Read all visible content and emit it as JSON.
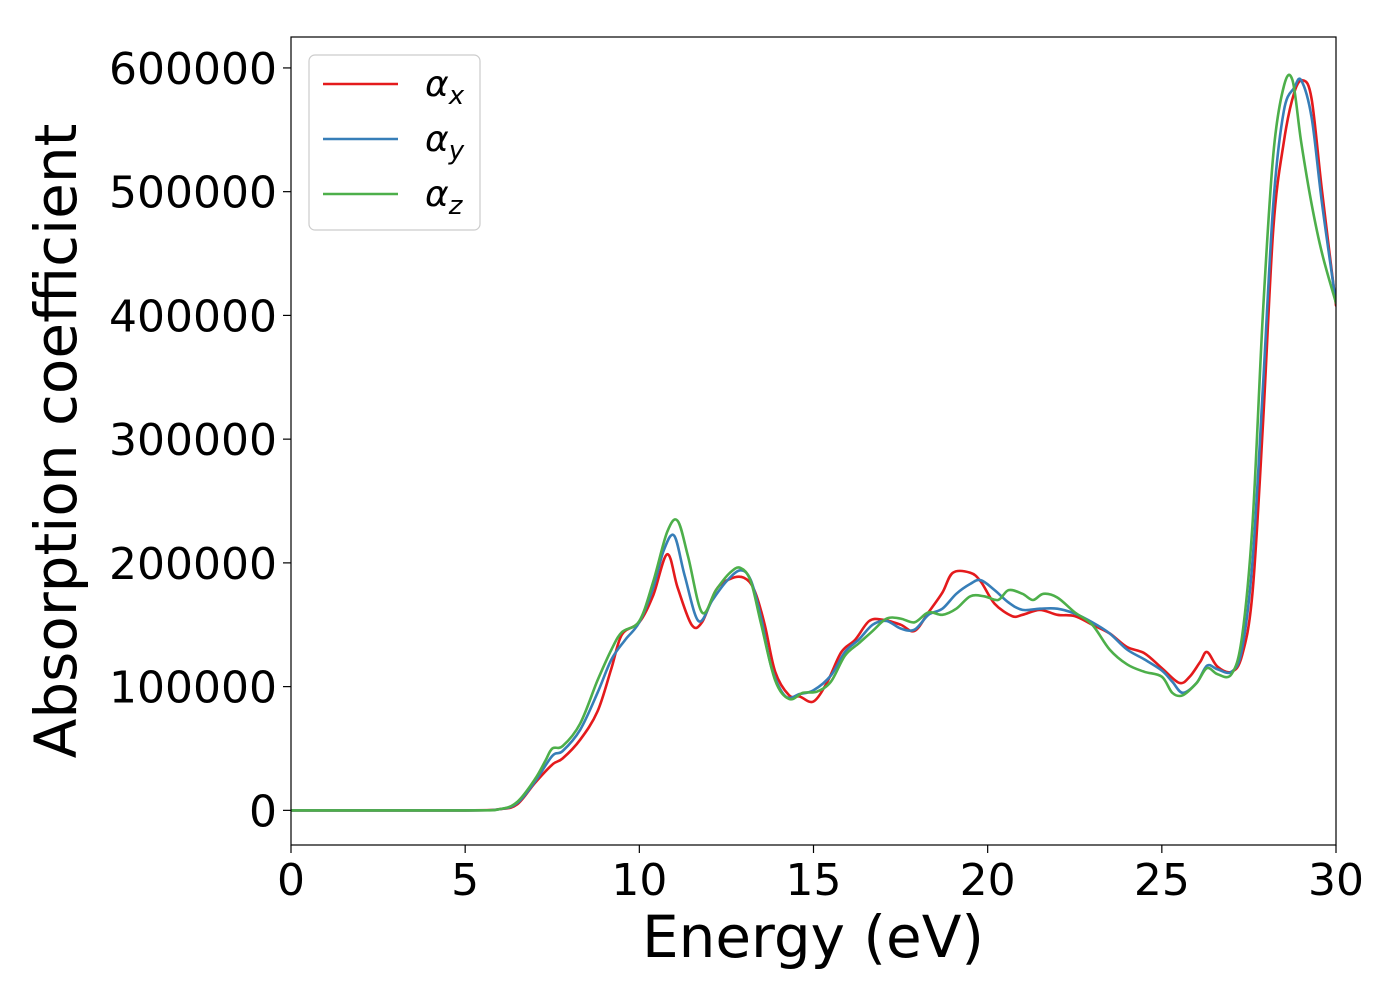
{
  "chart_data": {
    "type": "line",
    "title": "",
    "xlabel": "Energy (eV)",
    "ylabel": "Absorption coefficient",
    "xlim": [
      0,
      30
    ],
    "ylim": [
      -28000,
      625000
    ],
    "xticks": [
      0,
      5,
      10,
      15,
      20,
      25,
      30
    ],
    "yticks": [
      0,
      100000,
      200000,
      300000,
      400000,
      500000,
      600000
    ],
    "grid": false,
    "legend_position": "top-left",
    "series": [
      {
        "name": "α",
        "subscript": "x",
        "color": "#e41a1c",
        "x": [
          0,
          5,
          6,
          6.5,
          7,
          7.5,
          7.8,
          8.3,
          8.8,
          9.2,
          9.5,
          10,
          10.4,
          10.8,
          11.1,
          11.5,
          11.8,
          12.2,
          12.6,
          13,
          13.3,
          13.6,
          13.9,
          14.3,
          14.6,
          15,
          15.4,
          15.8,
          16.2,
          16.6,
          17,
          17.5,
          17.9,
          18.3,
          18.7,
          19,
          19.5,
          19.8,
          20.2,
          20.7,
          21,
          21.5,
          22,
          22.5,
          23,
          23.5,
          24,
          24.5,
          25,
          25.5,
          25.8,
          26.1,
          26.3,
          26.6,
          27,
          27.3,
          27.6,
          27.9,
          28.2,
          28.5,
          28.8,
          29.05,
          29.3,
          29.6,
          30
        ],
        "y": [
          0,
          0,
          1000,
          5000,
          22000,
          37000,
          42000,
          57000,
          80000,
          115000,
          142000,
          152000,
          174000,
          207000,
          180000,
          150000,
          152000,
          178000,
          187000,
          188000,
          178000,
          150000,
          112000,
          93000,
          92000,
          88000,
          104000,
          128000,
          138000,
          153000,
          154000,
          150000,
          145000,
          160000,
          176000,
          192000,
          192000,
          185000,
          167000,
          157000,
          158000,
          162000,
          158000,
          157000,
          150000,
          143000,
          132000,
          127000,
          115000,
          103000,
          108000,
          120000,
          128000,
          116000,
          112000,
          125000,
          175000,
          310000,
          470000,
          540000,
          580000,
          590000,
          575000,
          500000,
          408000
        ]
      },
      {
        "name": "α",
        "subscript": "y",
        "color": "#377eb8",
        "x": [
          0,
          5,
          6,
          6.5,
          7,
          7.5,
          7.8,
          8.3,
          8.8,
          9.2,
          9.6,
          10,
          10.4,
          10.7,
          11,
          11.3,
          11.7,
          12.1,
          12.5,
          12.9,
          13.2,
          13.5,
          13.8,
          14.2,
          14.6,
          15,
          15.5,
          15.9,
          16.3,
          16.7,
          17.1,
          17.5,
          17.9,
          18.3,
          18.7,
          19.1,
          19.5,
          19.8,
          20.2,
          20.6,
          21,
          21.5,
          22,
          22.5,
          23,
          23.5,
          24,
          24.5,
          25,
          25.3,
          25.6,
          26,
          26.3,
          26.6,
          27,
          27.3,
          27.6,
          27.9,
          28.2,
          28.5,
          28.8,
          29.0,
          29.3,
          29.6,
          30
        ],
        "y": [
          0,
          0,
          1000,
          6000,
          23000,
          44000,
          48000,
          65000,
          95000,
          122000,
          138000,
          152000,
          180000,
          210000,
          222000,
          190000,
          153000,
          170000,
          185000,
          194000,
          186000,
          155000,
          115000,
          92000,
          94000,
          97000,
          109000,
          128000,
          138000,
          150000,
          153000,
          147000,
          146000,
          158000,
          163000,
          175000,
          183000,
          186000,
          178000,
          168000,
          162000,
          163000,
          163000,
          159000,
          152000,
          143000,
          130000,
          122000,
          113000,
          104000,
          95000,
          103000,
          117000,
          114000,
          112000,
          130000,
          200000,
          340000,
          490000,
          565000,
          584000,
          590000,
          560000,
          490000,
          410000
        ]
      },
      {
        "name": "α",
        "subscript": "z",
        "color": "#4daf4a",
        "x": [
          0,
          5,
          6,
          6.5,
          7,
          7.3,
          7.5,
          7.8,
          8.3,
          8.8,
          9.2,
          9.5,
          10,
          10.4,
          10.8,
          11.1,
          11.4,
          11.8,
          12.2,
          12.6,
          12.9,
          13.2,
          13.5,
          13.9,
          14.3,
          14.7,
          15.1,
          15.5,
          15.9,
          16.3,
          16.7,
          17.1,
          17.5,
          17.9,
          18.3,
          18.7,
          19.1,
          19.5,
          19.9,
          20.3,
          20.6,
          21,
          21.3,
          21.6,
          22,
          22.5,
          23,
          23.5,
          24,
          24.5,
          25,
          25.3,
          25.6,
          26,
          26.3,
          26.6,
          27,
          27.3,
          27.6,
          27.9,
          28.2,
          28.5,
          28.75,
          29,
          29.3,
          29.6,
          30
        ],
        "y": [
          0,
          0,
          1000,
          7000,
          25000,
          40000,
          50000,
          52000,
          70000,
          105000,
          130000,
          144000,
          153000,
          185000,
          225000,
          234000,
          205000,
          160000,
          178000,
          192000,
          196000,
          185000,
          150000,
          105000,
          90000,
          95000,
          96000,
          104000,
          125000,
          135000,
          145000,
          155000,
          155000,
          152000,
          160000,
          158000,
          163000,
          173000,
          173000,
          170000,
          178000,
          175000,
          170000,
          175000,
          172000,
          160000,
          150000,
          130000,
          118000,
          112000,
          108000,
          95000,
          93000,
          103000,
          115000,
          110000,
          110000,
          140000,
          230000,
          400000,
          530000,
          585000,
          590000,
          540000,
          490000,
          450000,
          410000
        ]
      }
    ]
  }
}
